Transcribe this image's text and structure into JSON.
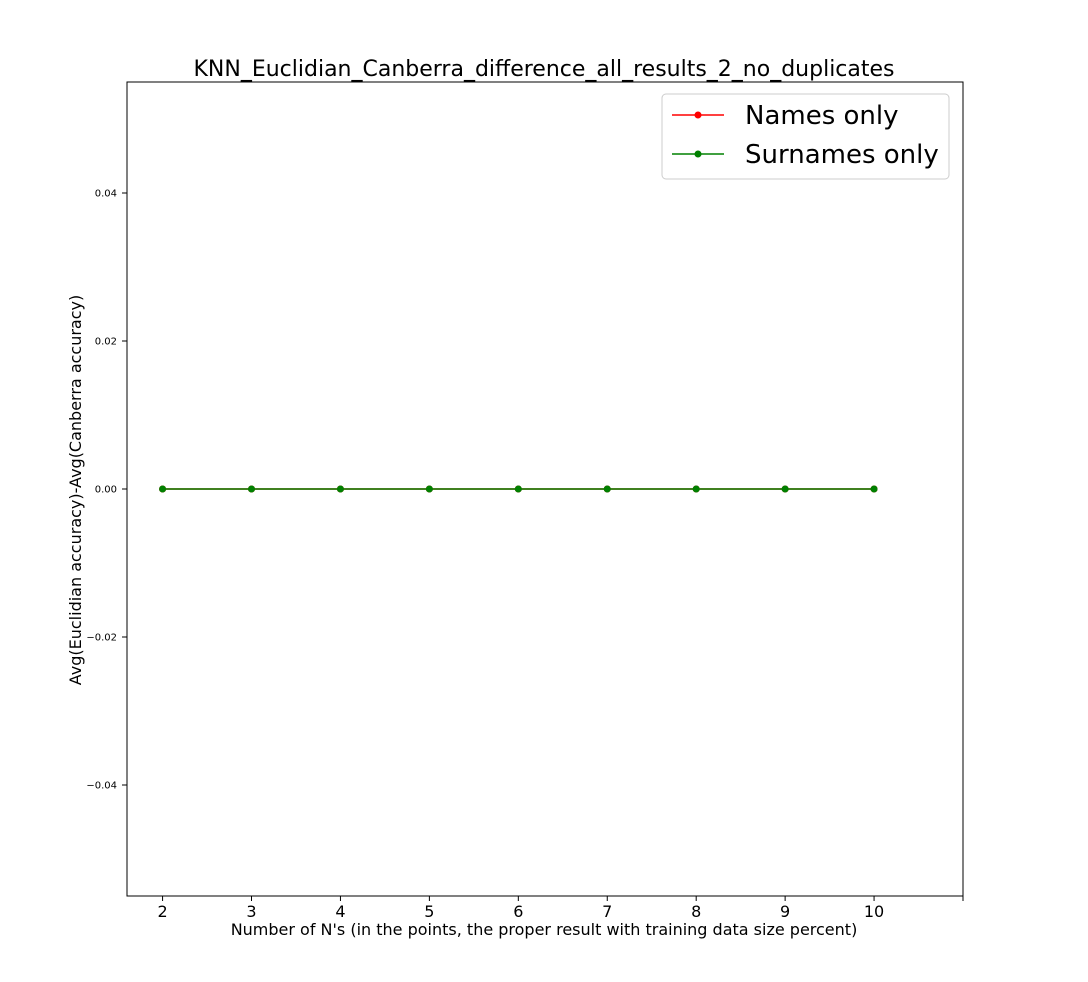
{
  "chart_data": {
    "type": "line",
    "title": "KNN_Euclidian_Canberra_difference_all_results_2_no_duplicates",
    "xlabel": "Number of N's (in the points, the proper result with training data size percent)",
    "ylabel": "Avg(Euclidian accuracy)-Avg(Canberra accuracy)",
    "x": [
      2,
      3,
      4,
      5,
      6,
      7,
      8,
      9,
      10
    ],
    "x_ticks": [
      2,
      3,
      4,
      5,
      6,
      7,
      8,
      9,
      10
    ],
    "x_tick_labels": [
      "2",
      "3",
      "4",
      "5",
      "6",
      "7",
      "8",
      "9",
      "10"
    ],
    "xlim": [
      1.6,
      11
    ],
    "y_ticks": [
      -0.04,
      -0.02,
      0.0,
      0.02,
      0.04
    ],
    "y_tick_labels": [
      "−0.04",
      "−0.02",
      "0.00",
      "0.02",
      "0.04"
    ],
    "ylim": [
      -0.055,
      0.055
    ],
    "grid": false,
    "legend_position": "top-right",
    "series": [
      {
        "name": "Names only",
        "color": "#ff0000",
        "values": [
          0,
          0,
          0,
          0,
          0,
          0,
          0,
          0,
          0
        ]
      },
      {
        "name": "Surnames only",
        "color": "#008000",
        "values": [
          0,
          0,
          0,
          0,
          0,
          0,
          0,
          0,
          0
        ]
      }
    ]
  }
}
